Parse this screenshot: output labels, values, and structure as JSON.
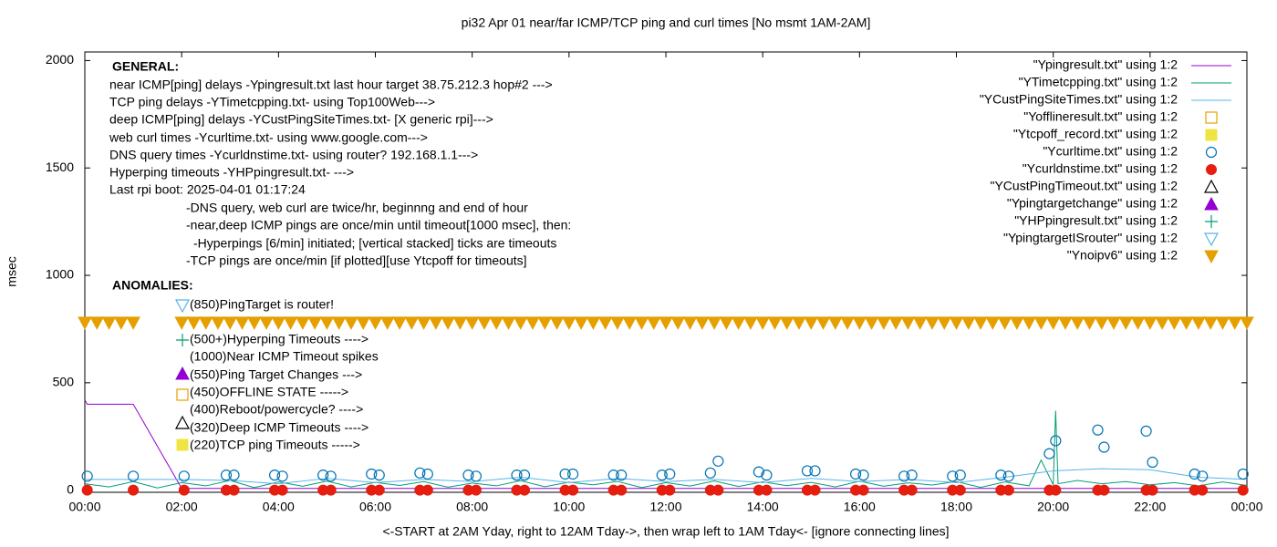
{
  "chart_data": {
    "type": "line",
    "title": "pi32 Apr 01  near/far ICMP/TCP ping and curl times [No msmt 1AM-2AM]",
    "xlabel": "<-START at 2AM Yday, right to 12AM Tday->, then wrap left to 1AM Tday<- [ignore connecting lines]",
    "ylabel": "msec",
    "xlim": [
      0,
      24
    ],
    "xticks": [
      {
        "value": 0,
        "label": "00:00"
      },
      {
        "value": 2,
        "label": "02:00"
      },
      {
        "value": 4,
        "label": "04:00"
      },
      {
        "value": 6,
        "label": "06:00"
      },
      {
        "value": 8,
        "label": "08:00"
      },
      {
        "value": 10,
        "label": "10:00"
      },
      {
        "value": 12,
        "label": "12:00"
      },
      {
        "value": 14,
        "label": "14:00"
      },
      {
        "value": 16,
        "label": "16:00"
      },
      {
        "value": 18,
        "label": "18:00"
      },
      {
        "value": 20,
        "label": "20:00"
      },
      {
        "value": 22,
        "label": "22:00"
      },
      {
        "value": 24,
        "label": "00:00"
      }
    ],
    "ylim": [
      -10,
      2040
    ],
    "yticks": [
      0,
      500,
      1000,
      1500,
      2000
    ],
    "legend": "top-right",
    "annotations": [
      "GENERAL:",
      "near ICMP[ping] delays -Ypingresult.txt last hour target 38.75.212.3 hop#2 --->",
      "TCP ping delays -YTimetcpping.txt- using Top100Web--->",
      "deep ICMP[ping] delays -YCustPingSiteTimes.txt- [X generic rpi]--->",
      "web curl times -Ycurltime.txt- using www.google.com--->",
      "DNS query times -Ycurldnstime.txt- using router? 192.168.1.1--->",
      "Hyperping timeouts -YHPpingresult.txt- --->",
      "Last rpi boot: 2025-04-01 01:17:24",
      "-DNS query, web curl are twice/hr, beginnng and end of hour",
      "-near,deep ICMP pings are once/min until timeout[1000 msec], then:",
      "-Hyperpings [6/min] initiated; [vertical stacked] ticks are timeouts",
      "-TCP pings are once/min [if plotted][use Ytcpoff for timeouts]",
      "ANOMALIES:",
      "(850)PingTarget is router!",
      "(500+)Hyperping Timeouts ---->",
      "(1000)Near ICMP Timeout spikes",
      "(550)Ping Target Changes --->",
      "(450)OFFLINE STATE ----->",
      "(400)Reboot/powercycle? ---->",
      "(320)Deep ICMP Timeouts ---->",
      "(220)TCP ping Timeouts ----->"
    ],
    "series": [
      {
        "name": "\"Ypingresult.txt\" using 1:2",
        "color": "#9400d3",
        "style": "line",
        "x": [
          0,
          0.05,
          1,
          2,
          24
        ],
        "values": [
          420,
          400,
          400,
          8,
          8
        ]
      },
      {
        "name": "\"YTimetcpping.txt\" using 1:2",
        "color": "#009e73",
        "style": "line",
        "x": [
          0,
          0.5,
          1,
          1.5,
          2,
          2.5,
          3,
          3.5,
          4,
          4.5,
          5,
          5.5,
          6,
          6.5,
          7,
          7.5,
          8,
          8.5,
          9,
          9.5,
          10,
          10.5,
          11,
          11.5,
          12,
          12.5,
          13,
          13.5,
          14,
          14.5,
          15,
          15.5,
          16,
          16.5,
          17,
          17.5,
          18,
          18.5,
          19,
          19.5,
          19.75,
          20,
          20.05,
          20.1,
          20.5,
          21,
          21.5,
          22,
          22.5,
          23,
          23.5,
          24
        ],
        "values": [
          30,
          15,
          40,
          10,
          35,
          20,
          45,
          12,
          38,
          18,
          42,
          15,
          36,
          22,
          40,
          14,
          33,
          20,
          44,
          16,
          37,
          25,
          41,
          12,
          35,
          19,
          43,
          17,
          39,
          21,
          36,
          15,
          42,
          18,
          34,
          24,
          40,
          13,
          38,
          20,
          140,
          25,
          370,
          30,
          45,
          30,
          40,
          25,
          35,
          20,
          38,
          22
        ]
      },
      {
        "name": "\"YCustPingSiteTimes.txt\" using 1:2",
        "color": "#56b4e9",
        "style": "line",
        "x": [
          0,
          1,
          2,
          3,
          4,
          5,
          6,
          7,
          8,
          9,
          10,
          11,
          12,
          13,
          14,
          15,
          16,
          17,
          18,
          19,
          20,
          21,
          22,
          23,
          24
        ],
        "values": [
          50,
          50,
          50,
          45,
          30,
          55,
          35,
          50,
          40,
          60,
          35,
          55,
          40,
          50,
          35,
          55,
          40,
          50,
          35,
          60,
          90,
          100,
          95,
          60,
          50
        ]
      },
      {
        "name": "\"Yofflineresult.txt\" using 1:2",
        "color": "#e69f00",
        "style": "square-open",
        "x": [],
        "values": []
      },
      {
        "name": "\"Ytcpoff_record.txt\" using 1:2",
        "color": "#f0e442",
        "style": "square-filled",
        "x": [],
        "values": []
      },
      {
        "name": "\"Ycurltime.txt\" using 1:2",
        "color": "#0072b2",
        "style": "circle-open",
        "x": [
          0.05,
          1,
          2.05,
          2.92,
          3.08,
          3.92,
          4.08,
          4.92,
          5.08,
          5.92,
          6.08,
          6.92,
          7.08,
          7.92,
          8.08,
          8.92,
          9.08,
          9.92,
          10.08,
          10.92,
          11.08,
          11.92,
          12.08,
          12.92,
          13.08,
          13.92,
          14.08,
          14.92,
          15.08,
          15.92,
          16.08,
          16.92,
          17.08,
          17.92,
          18.08,
          18.92,
          19.08,
          19.92,
          20.05,
          20.92,
          21.05,
          21.92,
          22.05,
          22.92,
          23.08,
          23.92
        ],
        "values": [
          65,
          65,
          65,
          70,
          70,
          70,
          65,
          70,
          65,
          75,
          70,
          80,
          75,
          70,
          65,
          70,
          70,
          75,
          75,
          70,
          70,
          70,
          75,
          80,
          135,
          85,
          70,
          90,
          90,
          75,
          70,
          65,
          70,
          65,
          70,
          70,
          65,
          170,
          230,
          280,
          200,
          275,
          130,
          75,
          65,
          75
        ]
      },
      {
        "name": "\"Ycurldnstime.txt\" using 1:2",
        "color": "#e51e10",
        "style": "circle-filled",
        "x": [
          0.05,
          1,
          2.05,
          2.92,
          3.08,
          3.92,
          4.08,
          4.92,
          5.08,
          5.92,
          6.08,
          6.92,
          7.08,
          7.92,
          8.08,
          8.92,
          9.08,
          9.92,
          10.08,
          10.92,
          11.08,
          11.92,
          12.08,
          12.92,
          13.08,
          13.92,
          14.08,
          14.92,
          15.08,
          15.92,
          16.08,
          16.92,
          17.08,
          17.92,
          18.08,
          18.92,
          19.08,
          19.92,
          20.05,
          20.92,
          21.05,
          21.92,
          22.05,
          22.92,
          23.08,
          23.92
        ],
        "values": [
          0,
          0,
          0,
          0,
          0,
          0,
          0,
          0,
          0,
          0,
          0,
          0,
          0,
          0,
          0,
          0,
          0,
          0,
          0,
          0,
          0,
          0,
          0,
          0,
          0,
          0,
          0,
          0,
          0,
          0,
          0,
          0,
          0,
          0,
          0,
          0,
          0,
          0,
          0,
          0,
          0,
          0,
          0,
          0,
          0,
          0
        ]
      },
      {
        "name": "\"YCustPingTimeout.txt\" using 1:2",
        "color": "#000000",
        "style": "triangle-up-open",
        "x": [],
        "values": []
      },
      {
        "name": "\"Ypingtargetchange\" using 1:2",
        "color": "#9400d3",
        "style": "triangle-up-filled",
        "x": [],
        "values": []
      },
      {
        "name": "\"YHPpingresult.txt\" using 1:2",
        "color": "#009e73",
        "style": "plus",
        "x": [],
        "values": []
      },
      {
        "name": "\"YpingtargetISrouter\" using 1:2",
        "color": "#56b4e9",
        "style": "triangle-down-open",
        "x": [],
        "values": []
      },
      {
        "name": "\"Ynoipv6\" using 1:2",
        "color": "#e69f00",
        "style": "triangle-down-filled",
        "x": [
          0,
          0.25,
          0.5,
          0.75,
          1,
          2,
          2.25,
          2.5,
          2.75,
          3,
          3.25,
          3.5,
          3.75,
          4,
          4.25,
          4.5,
          4.75,
          5,
          5.25,
          5.5,
          5.75,
          6,
          6.25,
          6.5,
          6.75,
          7,
          7.25,
          7.5,
          7.75,
          8,
          8.25,
          8.5,
          8.75,
          9,
          9.25,
          9.5,
          9.75,
          10,
          10.25,
          10.5,
          10.75,
          11,
          11.25,
          11.5,
          11.75,
          12,
          12.25,
          12.5,
          12.75,
          13,
          13.25,
          13.5,
          13.75,
          14,
          14.25,
          14.5,
          14.75,
          15,
          15.25,
          15.5,
          15.75,
          16,
          16.25,
          16.5,
          16.75,
          17,
          17.25,
          17.5,
          17.75,
          18,
          18.25,
          18.5,
          18.75,
          19,
          19.25,
          19.5,
          19.75,
          20,
          20.25,
          20.5,
          20.75,
          21,
          21.25,
          21.5,
          21.75,
          22,
          22.25,
          22.5,
          22.75,
          23,
          23.25,
          23.5,
          23.75,
          24
        ],
        "values": [
          780,
          780,
          780,
          780,
          780,
          780,
          780,
          780,
          780,
          780,
          780,
          780,
          780,
          780,
          780,
          780,
          780,
          780,
          780,
          780,
          780,
          780,
          780,
          780,
          780,
          780,
          780,
          780,
          780,
          780,
          780,
          780,
          780,
          780,
          780,
          780,
          780,
          780,
          780,
          780,
          780,
          780,
          780,
          780,
          780,
          780,
          780,
          780,
          780,
          780,
          780,
          780,
          780,
          780,
          780,
          780,
          780,
          780,
          780,
          780,
          780,
          780,
          780,
          780,
          780,
          780,
          780,
          780,
          780,
          780,
          780,
          780,
          780,
          780,
          780,
          780,
          780,
          780,
          780,
          780,
          780,
          780,
          780,
          780,
          780,
          780,
          780,
          780,
          780,
          780,
          780,
          780,
          780,
          780
        ]
      }
    ]
  }
}
